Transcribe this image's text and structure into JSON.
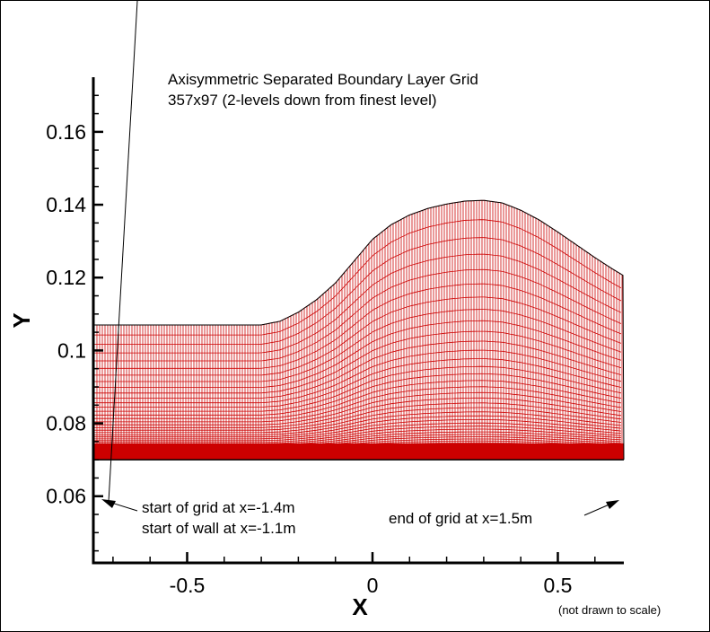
{
  "chart_data": {
    "type": "line",
    "title": "Axisymmetric Separated Boundary Layer Grid",
    "subtitle": "357x97 (2-levels down from finest level)",
    "xlabel": "X",
    "ylabel": "Y",
    "xlim": [
      -0.753,
      0.678
    ],
    "ylim": [
      0.0417,
      0.175
    ],
    "x_ticks": [
      -0.5,
      0,
      0.5
    ],
    "x_tick_labels": [
      "-0.5",
      "0",
      "0.5"
    ],
    "y_ticks": [
      0.06,
      0.08,
      0.1,
      0.12,
      0.14,
      0.16
    ],
    "y_tick_labels": [
      "0.06",
      "0.08",
      "0.1",
      "0.12",
      "0.14",
      "0.16"
    ],
    "grid": false,
    "grid_color": "#cc0000",
    "wall_y": 0.07,
    "series": [
      {
        "x": [
          -0.753,
          -0.3,
          -0.25,
          -0.2,
          -0.15,
          -0.1,
          -0.05,
          0,
          0.05,
          0.1,
          0.15,
          0.2,
          0.25,
          0.3,
          0.35,
          0.4,
          0.45,
          0.5,
          0.55,
          0.6,
          0.65,
          0.678
        ],
        "y": [
          0.107,
          0.107,
          0.108,
          0.1105,
          0.114,
          0.1185,
          0.1245,
          0.1305,
          0.1345,
          0.1372,
          0.139,
          0.1402,
          0.141,
          0.1412,
          0.1405,
          0.1385,
          0.1358,
          0.1325,
          0.129,
          0.1255,
          0.1222,
          0.1205
        ]
      }
    ],
    "annotations": [
      {
        "text": "start of grid at x=-1.4m"
      },
      {
        "text": "start of wall at x=-1.1m"
      },
      {
        "text": "end of grid at x=1.5m"
      },
      {
        "text": "(not drawn to scale)"
      }
    ]
  }
}
